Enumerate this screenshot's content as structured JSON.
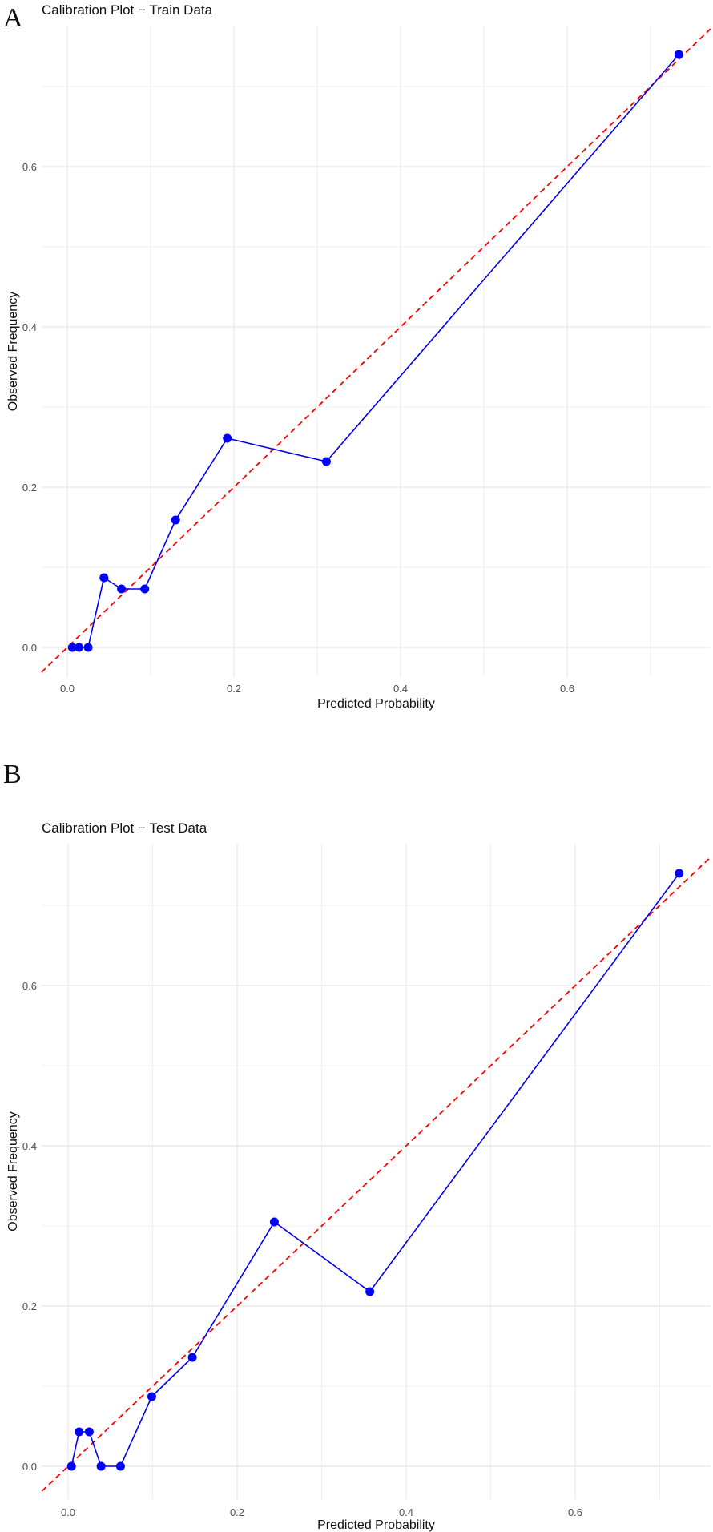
{
  "panels": [
    {
      "letter": "A",
      "title": "Calibration Plot − Train Data"
    },
    {
      "letter": "B",
      "title": "Calibration Plot − Test Data"
    }
  ],
  "colors": {
    "line": "#0000ee",
    "point": "#0000ff",
    "reference": "#ff0000",
    "grid": "#ebebeb",
    "text": "#111111",
    "tick_text": "#4d4d4d"
  },
  "chart_data": [
    {
      "type": "line",
      "title": "Calibration Plot − Train Data",
      "xlabel": "Predicted Probability",
      "ylabel": "Observed Frequency",
      "x_ticks": [
        0.0,
        0.2,
        0.4,
        0.6
      ],
      "y_ticks": [
        0.0,
        0.2,
        0.4,
        0.6
      ],
      "xlim": [
        -0.031,
        0.772
      ],
      "ylim": [
        -0.037,
        0.776
      ],
      "grid": true,
      "series": [
        {
          "name": "calibration",
          "style": "solid-line-with-points",
          "x": [
            0.006,
            0.014,
            0.025,
            0.044,
            0.065,
            0.093,
            0.13,
            0.192,
            0.311,
            0.734
          ],
          "y": [
            0.0,
            0.0,
            0.0,
            0.087,
            0.073,
            0.073,
            0.159,
            0.261,
            0.232,
            0.74
          ]
        },
        {
          "name": "perfect calibration",
          "style": "dashed",
          "x": [
            -0.031,
            0.772
          ],
          "y": [
            -0.031,
            0.772
          ]
        }
      ]
    },
    {
      "type": "line",
      "title": "Calibration Plot − Test Data",
      "xlabel": "Predicted Probability",
      "ylabel": "Observed Frequency",
      "x_ticks": [
        0.0,
        0.2,
        0.4,
        0.6
      ],
      "y_ticks": [
        0.0,
        0.2,
        0.4,
        0.6
      ],
      "xlim": [
        -0.031,
        0.761
      ],
      "ylim": [
        -0.041,
        0.777
      ],
      "grid": true,
      "series": [
        {
          "name": "calibration",
          "style": "solid-line-with-points",
          "x": [
            0.004,
            0.013,
            0.025,
            0.039,
            0.062,
            0.099,
            0.147,
            0.244,
            0.357,
            0.723
          ],
          "y": [
            0.0,
            0.043,
            0.043,
            0.0,
            0.0,
            0.087,
            0.136,
            0.305,
            0.218,
            0.74
          ]
        },
        {
          "name": "perfect calibration",
          "style": "dashed",
          "x": [
            -0.031,
            0.761
          ],
          "y": [
            -0.031,
            0.761
          ]
        }
      ]
    }
  ]
}
